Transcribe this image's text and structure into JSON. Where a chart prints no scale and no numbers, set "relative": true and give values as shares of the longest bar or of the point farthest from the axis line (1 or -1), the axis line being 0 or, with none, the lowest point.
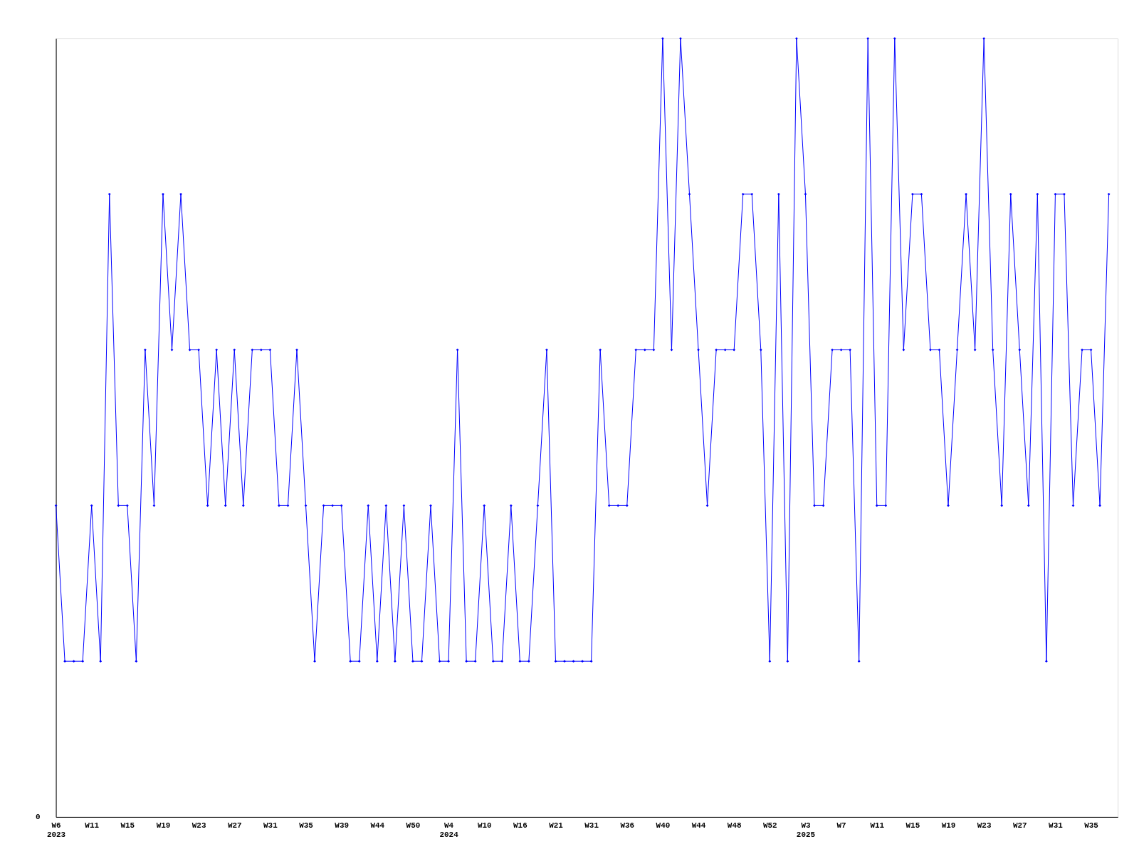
{
  "chart_data": {
    "type": "line",
    "relative": true,
    "grid": false,
    "marker": "diamond",
    "line_style": "solid",
    "categories": [
      "W6 2023",
      null,
      null,
      null,
      "W11",
      null,
      null,
      null,
      "W15",
      null,
      null,
      null,
      "W19",
      null,
      null,
      null,
      "W23",
      null,
      null,
      null,
      "W27",
      null,
      null,
      null,
      "W31",
      null,
      null,
      null,
      "W35",
      null,
      null,
      null,
      "W39",
      null,
      null,
      null,
      "W44",
      null,
      null,
      null,
      "W50",
      null,
      null,
      null,
      "W4 2024",
      null,
      null,
      null,
      "W10",
      null,
      null,
      null,
      "W16",
      null,
      null,
      null,
      "W21",
      null,
      null,
      null,
      "W31",
      null,
      null,
      null,
      "W36",
      null,
      null,
      null,
      "W40",
      null,
      null,
      null,
      "W44",
      null,
      null,
      null,
      "W48",
      null,
      null,
      null,
      "W52",
      null,
      null,
      null,
      "W3 2025",
      null,
      null,
      null,
      "W7",
      null,
      null,
      null,
      "W11",
      null,
      null,
      null,
      "W15",
      null,
      null,
      null,
      "W19",
      null,
      null,
      null,
      "W23",
      null,
      null,
      null,
      "W27",
      null,
      null,
      null,
      "W31",
      null,
      null,
      null,
      "W35",
      null,
      null
    ],
    "series": [
      {
        "color": "#0000ff",
        "values": [
          0.4,
          0.2,
          0.2,
          0.2,
          0.4,
          0.2,
          0.8,
          0.4,
          0.4,
          0.2,
          0.6,
          0.4,
          0.8,
          0.6,
          0.8,
          0.6,
          0.6,
          0.4,
          0.6,
          0.4,
          0.6,
          0.4,
          0.6,
          0.6,
          0.6,
          0.4,
          0.4,
          0.6,
          0.4,
          0.2,
          0.4,
          0.4,
          0.4,
          0.2,
          0.2,
          0.4,
          0.2,
          0.4,
          0.2,
          0.4,
          0.2,
          0.2,
          0.4,
          0.2,
          0.2,
          0.6,
          0.2,
          0.2,
          0.4,
          0.2,
          0.2,
          0.4,
          0.2,
          0.2,
          0.4,
          0.6,
          0.2,
          0.2,
          0.2,
          0.2,
          0.2,
          0.6,
          0.4,
          0.4,
          0.4,
          0.6,
          0.6,
          0.6,
          1,
          0.6,
          1,
          0.8,
          0.6,
          0.4,
          0.6,
          0.6,
          0.6,
          0.8,
          0.8,
          0.6,
          0.2,
          0.8,
          0.2,
          1,
          0.8,
          0.4,
          0.4,
          0.6,
          0.6,
          0.6,
          0.2,
          1,
          0.4,
          0.4,
          1,
          0.6,
          0.8,
          0.8,
          0.6,
          0.6,
          0.4,
          0.6,
          0.8,
          0.6,
          1,
          0.6,
          0.4,
          0.8,
          0.6,
          0.4,
          0.8,
          0.2,
          0.8,
          0.8,
          0.4,
          0.6,
          0.6,
          0.4,
          0.8
        ]
      }
    ],
    "annotations": [
      "0"
    ]
  }
}
